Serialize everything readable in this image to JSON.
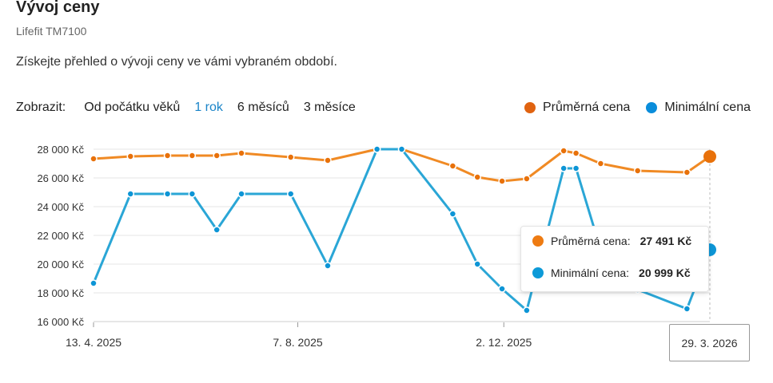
{
  "header": {
    "title": "Vývoj ceny",
    "subtitle": "Lifefit TM7100",
    "description": "Získejte přehled o vývoji ceny ve vámi vybraném období."
  },
  "filter": {
    "label": "Zobrazit:",
    "options": [
      "Od počátku věků",
      "1 rok",
      "6 měsíců",
      "3 měsíce"
    ],
    "active": "1 rok"
  },
  "colors": {
    "avg_line": "#f08a24",
    "avg_dot": "#e8710a",
    "min_line": "#2aa6d6",
    "min_dot": "#0d95d6"
  },
  "tooltip": {
    "avg_label": "Průměrná cena:",
    "avg_value": "27 491 Kč",
    "min_label": "Minimální cena:",
    "min_value": "20 999 Kč",
    "date": "29. 3. 2026"
  },
  "chart_data": {
    "type": "line",
    "title": "Vývoj ceny",
    "xlabel": "",
    "ylabel": "",
    "ylim": [
      16000,
      28000
    ],
    "yticks": [
      "16 000 Kč",
      "18 000 Kč",
      "20 000 Kč",
      "22 000 Kč",
      "24 000 Kč",
      "26 000 Kč",
      "28 000 Kč"
    ],
    "ytick_values": [
      16000,
      18000,
      20000,
      22000,
      24000,
      26000,
      28000
    ],
    "xticks": [
      "13. 4. 2025",
      "7. 8. 2025",
      "2. 12. 2025"
    ],
    "xtick_days": [
      0,
      116,
      233
    ],
    "xlim_days": [
      0,
      350
    ],
    "x_days": [
      0,
      21,
      42,
      56,
      70,
      84,
      112,
      133,
      161,
      175,
      204,
      218,
      232,
      246,
      267,
      274,
      288,
      309,
      337,
      350
    ],
    "legend": "top-right",
    "grid": true,
    "series": [
      {
        "name": "Průměrná cena",
        "values": [
          27333,
          27500,
          27556,
          27556,
          27556,
          27722,
          27444,
          27222,
          28000,
          28000,
          26833,
          26056,
          25778,
          25944,
          27889,
          27722,
          27000,
          26500,
          26389,
          27491
        ]
      },
      {
        "name": "Minimální cena",
        "values": [
          18667,
          24889,
          24889,
          24889,
          22389,
          24889,
          24889,
          19889,
          28000,
          28000,
          23500,
          20000,
          18278,
          16778,
          26667,
          26667,
          21000,
          18222,
          16889,
          20999
        ]
      }
    ]
  }
}
